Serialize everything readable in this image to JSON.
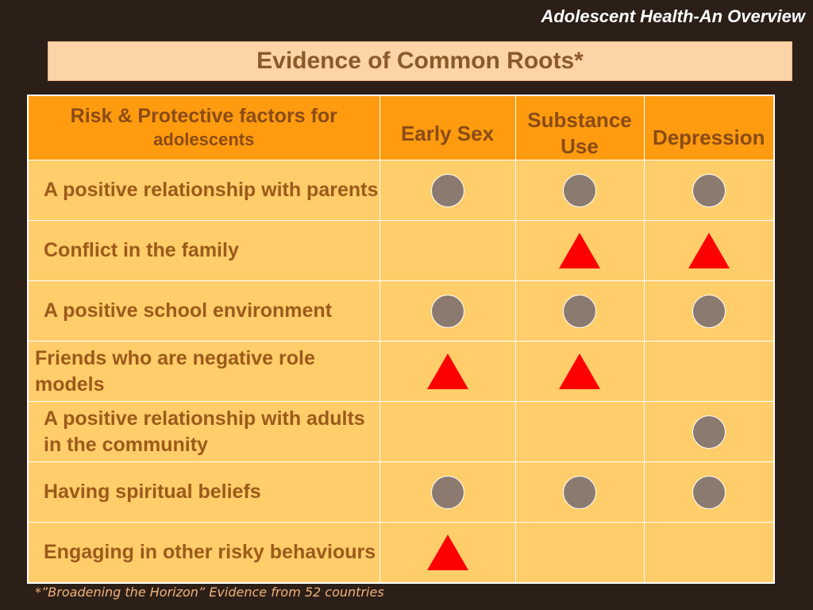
{
  "header": {
    "title": "Adolescent Health-An Overview"
  },
  "slide": {
    "title": "Evidence of Common Roots*"
  },
  "table": {
    "columns": {
      "factor_line1": "Risk & Protective factors for",
      "factor_line2": "adolescents",
      "early_sex": "Early Sex",
      "substance_use": "Substance Use",
      "depression": "Depression"
    },
    "rows": [
      {
        "factor": "A positive relationship with parents",
        "early_sex": "circle",
        "substance_use": "circle",
        "depression": "circle"
      },
      {
        "factor": "Conflict in the family",
        "early_sex": "",
        "substance_use": "triangle",
        "depression": "triangle"
      },
      {
        "factor": "A positive school environment",
        "early_sex": "circle",
        "substance_use": "circle",
        "depression": "circle"
      },
      {
        "factor": "Friends who are negative role models",
        "early_sex": "triangle",
        "substance_use": "triangle",
        "depression": ""
      },
      {
        "factor": "A positive relationship with adults in the community",
        "early_sex": "",
        "substance_use": "",
        "depression": "circle"
      },
      {
        "factor": "Having spiritual beliefs",
        "early_sex": "circle",
        "substance_use": "circle",
        "depression": "circle"
      },
      {
        "factor": "Engaging in other risky behaviours",
        "early_sex": "triangle",
        "substance_use": "",
        "depression": ""
      }
    ]
  },
  "legend_colors": {
    "circle": "#8a7a70",
    "triangle": "#ff0000"
  },
  "footnote": "*”Broadening the Horizon” Evidence from 52 countries"
}
